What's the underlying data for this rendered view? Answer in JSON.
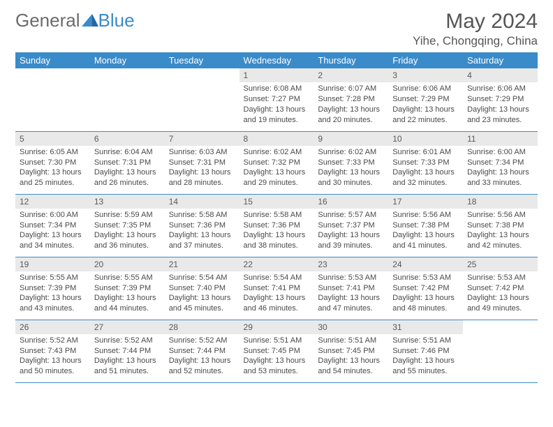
{
  "brand": {
    "part1": "General",
    "part2": "Blue"
  },
  "title": "May 2024",
  "location": "Yihe, Chongqing, China",
  "colors": {
    "accent": "#3a8bc9",
    "header_text": "#ffffff",
    "daynum_bg": "#e9e9e9",
    "text": "#4a4a4a",
    "title_text": "#555555",
    "background": "#ffffff"
  },
  "day_labels": [
    "Sunday",
    "Monday",
    "Tuesday",
    "Wednesday",
    "Thursday",
    "Friday",
    "Saturday"
  ],
  "weeks": [
    [
      null,
      null,
      null,
      {
        "n": "1",
        "sr": "Sunrise: 6:08 AM",
        "ss": "Sunset: 7:27 PM",
        "d1": "Daylight: 13 hours",
        "d2": "and 19 minutes."
      },
      {
        "n": "2",
        "sr": "Sunrise: 6:07 AM",
        "ss": "Sunset: 7:28 PM",
        "d1": "Daylight: 13 hours",
        "d2": "and 20 minutes."
      },
      {
        "n": "3",
        "sr": "Sunrise: 6:06 AM",
        "ss": "Sunset: 7:29 PM",
        "d1": "Daylight: 13 hours",
        "d2": "and 22 minutes."
      },
      {
        "n": "4",
        "sr": "Sunrise: 6:06 AM",
        "ss": "Sunset: 7:29 PM",
        "d1": "Daylight: 13 hours",
        "d2": "and 23 minutes."
      }
    ],
    [
      {
        "n": "5",
        "sr": "Sunrise: 6:05 AM",
        "ss": "Sunset: 7:30 PM",
        "d1": "Daylight: 13 hours",
        "d2": "and 25 minutes."
      },
      {
        "n": "6",
        "sr": "Sunrise: 6:04 AM",
        "ss": "Sunset: 7:31 PM",
        "d1": "Daylight: 13 hours",
        "d2": "and 26 minutes."
      },
      {
        "n": "7",
        "sr": "Sunrise: 6:03 AM",
        "ss": "Sunset: 7:31 PM",
        "d1": "Daylight: 13 hours",
        "d2": "and 28 minutes."
      },
      {
        "n": "8",
        "sr": "Sunrise: 6:02 AM",
        "ss": "Sunset: 7:32 PM",
        "d1": "Daylight: 13 hours",
        "d2": "and 29 minutes."
      },
      {
        "n": "9",
        "sr": "Sunrise: 6:02 AM",
        "ss": "Sunset: 7:33 PM",
        "d1": "Daylight: 13 hours",
        "d2": "and 30 minutes."
      },
      {
        "n": "10",
        "sr": "Sunrise: 6:01 AM",
        "ss": "Sunset: 7:33 PM",
        "d1": "Daylight: 13 hours",
        "d2": "and 32 minutes."
      },
      {
        "n": "11",
        "sr": "Sunrise: 6:00 AM",
        "ss": "Sunset: 7:34 PM",
        "d1": "Daylight: 13 hours",
        "d2": "and 33 minutes."
      }
    ],
    [
      {
        "n": "12",
        "sr": "Sunrise: 6:00 AM",
        "ss": "Sunset: 7:34 PM",
        "d1": "Daylight: 13 hours",
        "d2": "and 34 minutes."
      },
      {
        "n": "13",
        "sr": "Sunrise: 5:59 AM",
        "ss": "Sunset: 7:35 PM",
        "d1": "Daylight: 13 hours",
        "d2": "and 36 minutes."
      },
      {
        "n": "14",
        "sr": "Sunrise: 5:58 AM",
        "ss": "Sunset: 7:36 PM",
        "d1": "Daylight: 13 hours",
        "d2": "and 37 minutes."
      },
      {
        "n": "15",
        "sr": "Sunrise: 5:58 AM",
        "ss": "Sunset: 7:36 PM",
        "d1": "Daylight: 13 hours",
        "d2": "and 38 minutes."
      },
      {
        "n": "16",
        "sr": "Sunrise: 5:57 AM",
        "ss": "Sunset: 7:37 PM",
        "d1": "Daylight: 13 hours",
        "d2": "and 39 minutes."
      },
      {
        "n": "17",
        "sr": "Sunrise: 5:56 AM",
        "ss": "Sunset: 7:38 PM",
        "d1": "Daylight: 13 hours",
        "d2": "and 41 minutes."
      },
      {
        "n": "18",
        "sr": "Sunrise: 5:56 AM",
        "ss": "Sunset: 7:38 PM",
        "d1": "Daylight: 13 hours",
        "d2": "and 42 minutes."
      }
    ],
    [
      {
        "n": "19",
        "sr": "Sunrise: 5:55 AM",
        "ss": "Sunset: 7:39 PM",
        "d1": "Daylight: 13 hours",
        "d2": "and 43 minutes."
      },
      {
        "n": "20",
        "sr": "Sunrise: 5:55 AM",
        "ss": "Sunset: 7:39 PM",
        "d1": "Daylight: 13 hours",
        "d2": "and 44 minutes."
      },
      {
        "n": "21",
        "sr": "Sunrise: 5:54 AM",
        "ss": "Sunset: 7:40 PM",
        "d1": "Daylight: 13 hours",
        "d2": "and 45 minutes."
      },
      {
        "n": "22",
        "sr": "Sunrise: 5:54 AM",
        "ss": "Sunset: 7:41 PM",
        "d1": "Daylight: 13 hours",
        "d2": "and 46 minutes."
      },
      {
        "n": "23",
        "sr": "Sunrise: 5:53 AM",
        "ss": "Sunset: 7:41 PM",
        "d1": "Daylight: 13 hours",
        "d2": "and 47 minutes."
      },
      {
        "n": "24",
        "sr": "Sunrise: 5:53 AM",
        "ss": "Sunset: 7:42 PM",
        "d1": "Daylight: 13 hours",
        "d2": "and 48 minutes."
      },
      {
        "n": "25",
        "sr": "Sunrise: 5:53 AM",
        "ss": "Sunset: 7:42 PM",
        "d1": "Daylight: 13 hours",
        "d2": "and 49 minutes."
      }
    ],
    [
      {
        "n": "26",
        "sr": "Sunrise: 5:52 AM",
        "ss": "Sunset: 7:43 PM",
        "d1": "Daylight: 13 hours",
        "d2": "and 50 minutes."
      },
      {
        "n": "27",
        "sr": "Sunrise: 5:52 AM",
        "ss": "Sunset: 7:44 PM",
        "d1": "Daylight: 13 hours",
        "d2": "and 51 minutes."
      },
      {
        "n": "28",
        "sr": "Sunrise: 5:52 AM",
        "ss": "Sunset: 7:44 PM",
        "d1": "Daylight: 13 hours",
        "d2": "and 52 minutes."
      },
      {
        "n": "29",
        "sr": "Sunrise: 5:51 AM",
        "ss": "Sunset: 7:45 PM",
        "d1": "Daylight: 13 hours",
        "d2": "and 53 minutes."
      },
      {
        "n": "30",
        "sr": "Sunrise: 5:51 AM",
        "ss": "Sunset: 7:45 PM",
        "d1": "Daylight: 13 hours",
        "d2": "and 54 minutes."
      },
      {
        "n": "31",
        "sr": "Sunrise: 5:51 AM",
        "ss": "Sunset: 7:46 PM",
        "d1": "Daylight: 13 hours",
        "d2": "and 55 minutes."
      },
      null
    ]
  ]
}
